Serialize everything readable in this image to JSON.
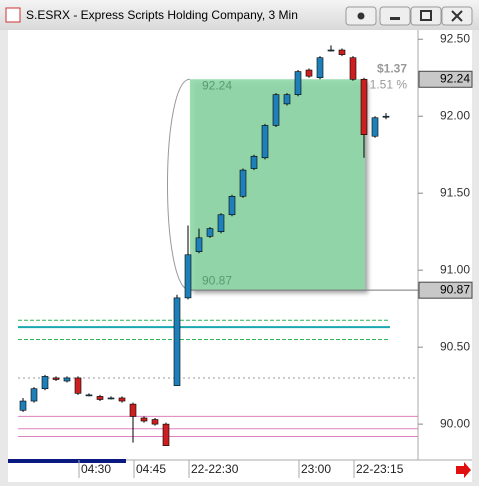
{
  "chart_data": {
    "type": "candlestick",
    "title": "S.ESRX - Express Scripts Holding Company, 3 Min",
    "categories": [
      null,
      null,
      null,
      null,
      null,
      "04:30",
      null,
      null,
      null,
      null,
      "04:45",
      null,
      null,
      null,
      null,
      "22-22:30",
      null,
      null,
      null,
      null,
      null,
      null,
      null,
      null,
      null,
      "23:00",
      null,
      null,
      null,
      null,
      "22-23:15",
      null,
      null,
      null
    ],
    "open": [
      90.09,
      90.15,
      90.23,
      90.3,
      90.28,
      90.3,
      90.19,
      90.18,
      90.17,
      90.17,
      90.13,
      90.04,
      90.03,
      90.0,
      90.25,
      90.82,
      91.12,
      91.22,
      91.25,
      91.36,
      91.48,
      91.66,
      91.73,
      91.94,
      92.08,
      92.14,
      92.3,
      92.25,
      92.43,
      92.43,
      92.38,
      92.24,
      91.87,
      92.0
    ],
    "high": [
      90.17,
      90.24,
      90.32,
      90.31,
      90.31,
      90.31,
      90.2,
      90.19,
      90.18,
      90.18,
      90.14,
      90.05,
      90.04,
      90.01,
      90.84,
      91.29,
      91.27,
      91.28,
      91.37,
      91.49,
      91.66,
      91.75,
      91.95,
      92.15,
      92.15,
      92.3,
      92.31,
      92.39,
      92.46,
      92.44,
      92.39,
      92.25,
      92.0,
      92.02
    ],
    "low": [
      90.08,
      90.14,
      90.22,
      90.28,
      90.27,
      90.19,
      90.18,
      90.15,
      90.16,
      90.14,
      89.88,
      90.01,
      89.99,
      89.86,
      90.25,
      90.81,
      91.11,
      91.21,
      91.24,
      91.35,
      91.47,
      91.65,
      91.72,
      91.93,
      92.07,
      92.13,
      92.25,
      92.24,
      92.42,
      92.39,
      92.23,
      91.73,
      91.86,
      91.98
    ],
    "close": [
      90.15,
      90.23,
      90.31,
      90.29,
      90.3,
      90.2,
      90.19,
      90.16,
      90.17,
      90.15,
      90.05,
      90.02,
      90.0,
      89.86,
      90.82,
      91.1,
      91.21,
      91.27,
      91.36,
      91.48,
      91.65,
      91.74,
      91.94,
      92.14,
      92.14,
      92.29,
      92.26,
      92.38,
      92.43,
      92.4,
      92.24,
      91.88,
      91.99,
      92.0
    ],
    "up_color": "#1f7fb8",
    "down_color": "#cc2020",
    "ylim": [
      89.78,
      92.56
    ],
    "yticks": [
      {
        "value": 90.0,
        "label": "90.00"
      },
      {
        "value": 90.5,
        "label": "90.50"
      },
      {
        "value": 91.0,
        "label": "91.00"
      },
      {
        "value": 91.5,
        "label": "91.50"
      },
      {
        "value": 92.0,
        "label": "92.00"
      },
      {
        "value": 92.5,
        "label": "92.50"
      }
    ],
    "levels": [
      {
        "value": 90.675,
        "color": "#2db35a",
        "style": "dash"
      },
      {
        "value": 90.63,
        "color": "#1aa8b0",
        "style": "solid"
      },
      {
        "value": 90.55,
        "color": "#2db35a",
        "style": "dash"
      },
      {
        "value": 90.3,
        "color": "#999999",
        "style": "dot"
      },
      {
        "value": 90.05,
        "color": "#e080c0",
        "style": "solid"
      },
      {
        "value": 89.97,
        "color": "#e080c0",
        "style": "solid"
      },
      {
        "value": 89.92,
        "color": "#e080c0",
        "style": "solid"
      }
    ],
    "measure": {
      "start": 90.87,
      "end": 92.24,
      "change_label": "$1.37",
      "pct_label": "1.51 %",
      "color": "#8fd9a8"
    }
  }
}
